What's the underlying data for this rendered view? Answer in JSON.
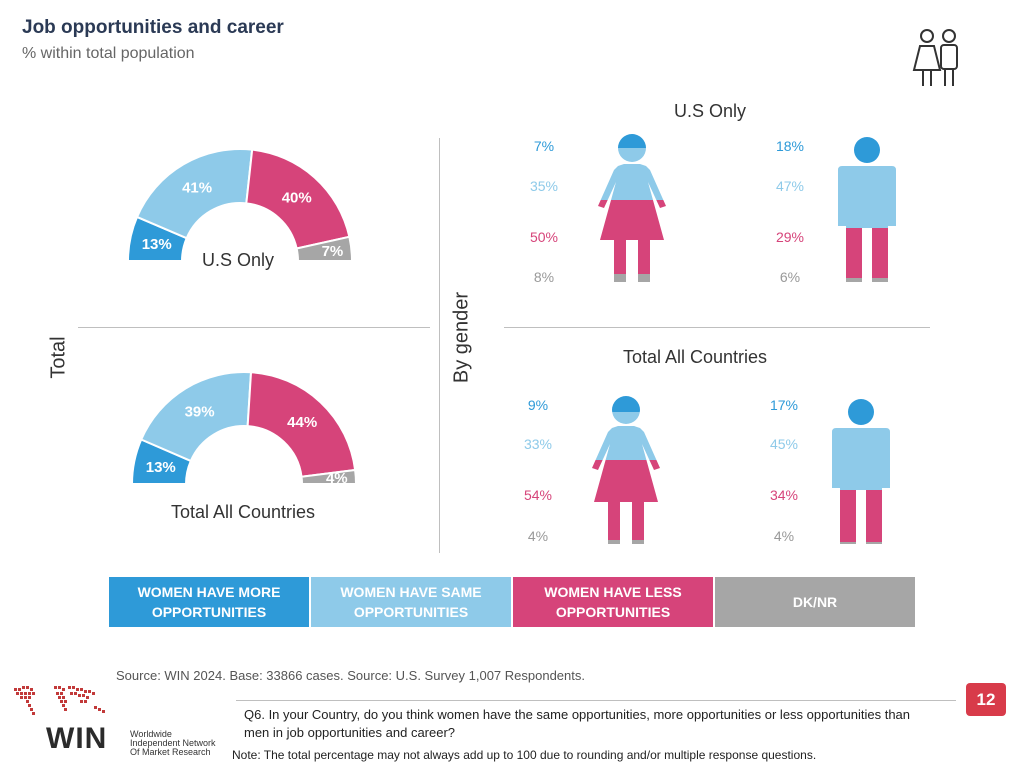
{
  "title": "Job opportunities and career",
  "subtitle": "% within total population",
  "labels": {
    "total": "Total",
    "by_gender": "By gender",
    "us_only": "U.S Only",
    "total_all": "Total All Countries"
  },
  "colors": {
    "more": "#2e9ad8",
    "same": "#8ecae9",
    "less": "#d6447a",
    "dk": "#a6a6a6"
  },
  "chart_data": [
    {
      "type": "donut-half",
      "title": "U.S Only",
      "categories": [
        "Women have more opportunities",
        "Women have same opportunities",
        "Women have less opportunities",
        "DK/NR"
      ],
      "values": [
        13,
        41,
        40,
        7
      ],
      "labels": [
        "13%",
        "41%",
        "40%",
        "7%"
      ]
    },
    {
      "type": "donut-half",
      "title": "Total All Countries",
      "categories": [
        "Women have more opportunities",
        "Women have same opportunities",
        "Women have less opportunities",
        "DK/NR"
      ],
      "values": [
        13,
        39,
        44,
        4
      ],
      "labels": [
        "13%",
        "39%",
        "44%",
        "4%"
      ]
    },
    {
      "type": "stacked-icon",
      "title": "U.S Only",
      "series": [
        {
          "values": [
            7,
            35,
            50,
            8
          ],
          "labels": [
            "7%",
            "35%",
            "50%",
            "8%"
          ]
        },
        {
          "values": [
            18,
            47,
            29,
            6
          ],
          "labels": [
            "18%",
            "47%",
            "29%",
            "6%"
          ]
        }
      ]
    },
    {
      "type": "stacked-icon",
      "title": "Total All Countries",
      "series": [
        {
          "values": [
            9,
            33,
            54,
            4
          ],
          "labels": [
            "9%",
            "33%",
            "54%",
            "4%"
          ]
        },
        {
          "values": [
            17,
            45,
            34,
            4
          ],
          "labels": [
            "17%",
            "45%",
            "34%",
            "4%"
          ]
        }
      ]
    }
  ],
  "legend": [
    {
      "line1": "WOMEN HAVE MORE",
      "line2": "OPPORTUNITIES"
    },
    {
      "line1": "WOMEN HAVE SAME",
      "line2": "OPPORTUNITIES"
    },
    {
      "line1": "WOMEN HAVE LESS",
      "line2": "OPPORTUNITIES"
    },
    {
      "line1": "DK/NR",
      "line2": ""
    }
  ],
  "source": "Source: WIN 2024. Base: 33866 cases. Source: U.S. Survey 1,007 Respondents.",
  "question": "Q6. In your Country, do you think women have the same opportunities, more opportunities or less opportunities than men in job opportunities and career?",
  "note": "Note: The total percentage may not always add up to 100 due to rounding and/or multiple response questions.",
  "page_number": "12",
  "logo": {
    "name": "WIN",
    "line1": "Worldwide",
    "line2": "Independent Network",
    "line3": "Of Market Research"
  }
}
